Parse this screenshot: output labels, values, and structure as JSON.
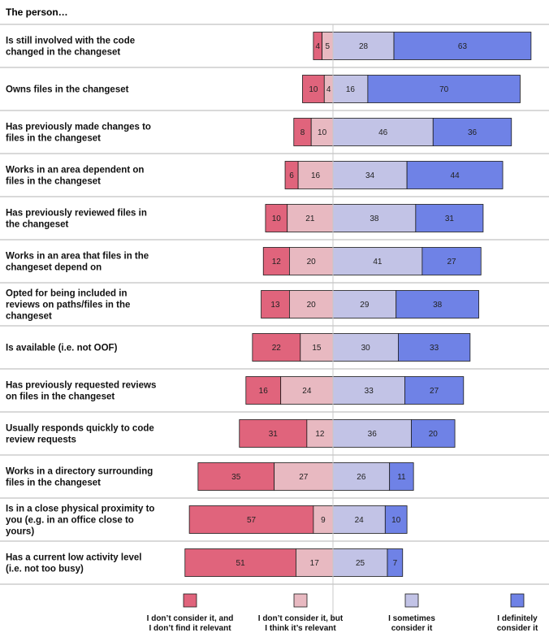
{
  "chart_data": {
    "type": "bar",
    "subtype": "diverging-stacked-horizontal",
    "title": "The person…",
    "categories": [
      [
        "Is still involved with the code",
        "changed in the changeset"
      ],
      [
        "Owns files in the changeset"
      ],
      [
        "Has previously made changes to",
        "files in the changeset"
      ],
      [
        "Works in an area dependent on",
        "files in the changeset"
      ],
      [
        "Has previously reviewed files in",
        "the changeset"
      ],
      [
        "Works in an area that files in the",
        "changeset depend on"
      ],
      [
        "Opted for being included in",
        "reviews on paths/files in the",
        "changeset"
      ],
      [
        "Is available (i.e. not OOF)"
      ],
      [
        "Has previously requested reviews",
        "on files in the changeset"
      ],
      [
        "Usually responds quickly to code",
        "review requests"
      ],
      [
        "Works in a directory surrounding",
        "files in the changeset"
      ],
      [
        "Is in a close physical proximity to",
        "you (e.g. in an office close to",
        "yours)"
      ],
      [
        "Has a current low activity level",
        "(i.e. not too busy)"
      ]
    ],
    "series": [
      {
        "name": "I don't consider it, and I don't find it relevant",
        "color": "#e0647c",
        "values": [
          4,
          10,
          8,
          6,
          10,
          12,
          13,
          22,
          16,
          31,
          35,
          57,
          51
        ]
      },
      {
        "name": "I don't consider it, but I think it's relevant",
        "color": "#e8b9c1",
        "values": [
          5,
          4,
          10,
          16,
          21,
          20,
          20,
          15,
          24,
          12,
          27,
          9,
          17
        ]
      },
      {
        "name": "I sometimes consider it",
        "color": "#c2c3e6",
        "values": [
          28,
          16,
          46,
          34,
          38,
          41,
          29,
          30,
          33,
          36,
          26,
          24,
          25
        ]
      },
      {
        "name": "I definitely consider it",
        "color": "#6f82e6",
        "values": [
          63,
          70,
          36,
          44,
          31,
          27,
          38,
          33,
          27,
          20,
          11,
          10,
          7
        ]
      }
    ],
    "legend_lines": [
      [
        "I don’t consider it, and",
        "I don’t find it relevant"
      ],
      [
        "I don’t consider it, but",
        "I think it’s relevant"
      ],
      [
        "I sometimes",
        "consider it"
      ],
      [
        "I definitely",
        "consider it"
      ]
    ],
    "legend_position": "bottom",
    "xlim": [
      -60,
      90
    ],
    "grid": false
  }
}
